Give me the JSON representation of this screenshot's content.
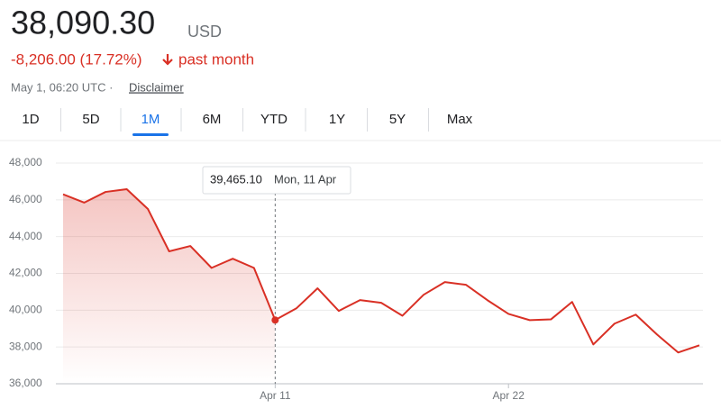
{
  "header": {
    "price": "38,090.30",
    "currency": "USD",
    "change": "-8,206.00 (17.72%)",
    "period": "past month",
    "timestamp": "May 1, 06:20 UTC ·",
    "disclaimer": "Disclaimer"
  },
  "tabs": [
    "1D",
    "5D",
    "1M",
    "6M",
    "YTD",
    "1Y",
    "5Y",
    "Max"
  ],
  "active_tab": 2,
  "chart_data": {
    "type": "line",
    "color": "#d93025",
    "grid": true,
    "categories": [
      null,
      null,
      null,
      null,
      null,
      null,
      null,
      null,
      null,
      null,
      "Apr 11",
      null,
      null,
      null,
      null,
      null,
      null,
      null,
      null,
      null,
      null,
      "Apr 22",
      null,
      null,
      null,
      null,
      null,
      null,
      null,
      null,
      null
    ],
    "values": [
      46300,
      45850,
      46430,
      46580,
      45500,
      43200,
      43490,
      42300,
      42800,
      42300,
      39465.1,
      40100,
      41190,
      39960,
      40550,
      40400,
      39700,
      40840,
      41530,
      41380,
      40550,
      39800,
      39460,
      39500,
      40450,
      38140,
      39270,
      39760,
      38680,
      37700,
      38090.3
    ],
    "ylim": [
      36000,
      48000
    ],
    "yticks": [
      {
        "value": 36000,
        "label": "36,000"
      },
      {
        "value": 38000,
        "label": "38,000"
      },
      {
        "value": 40000,
        "label": "40,000"
      },
      {
        "value": 42000,
        "label": "42,000"
      },
      {
        "value": 44000,
        "label": "44,000"
      },
      {
        "value": 46000,
        "label": "46,000"
      },
      {
        "value": 48000,
        "label": "48,000"
      }
    ],
    "highlight_index": 10,
    "tooltip": {
      "value_label": "39,465.10",
      "date": "Mon, 11 Apr"
    }
  }
}
